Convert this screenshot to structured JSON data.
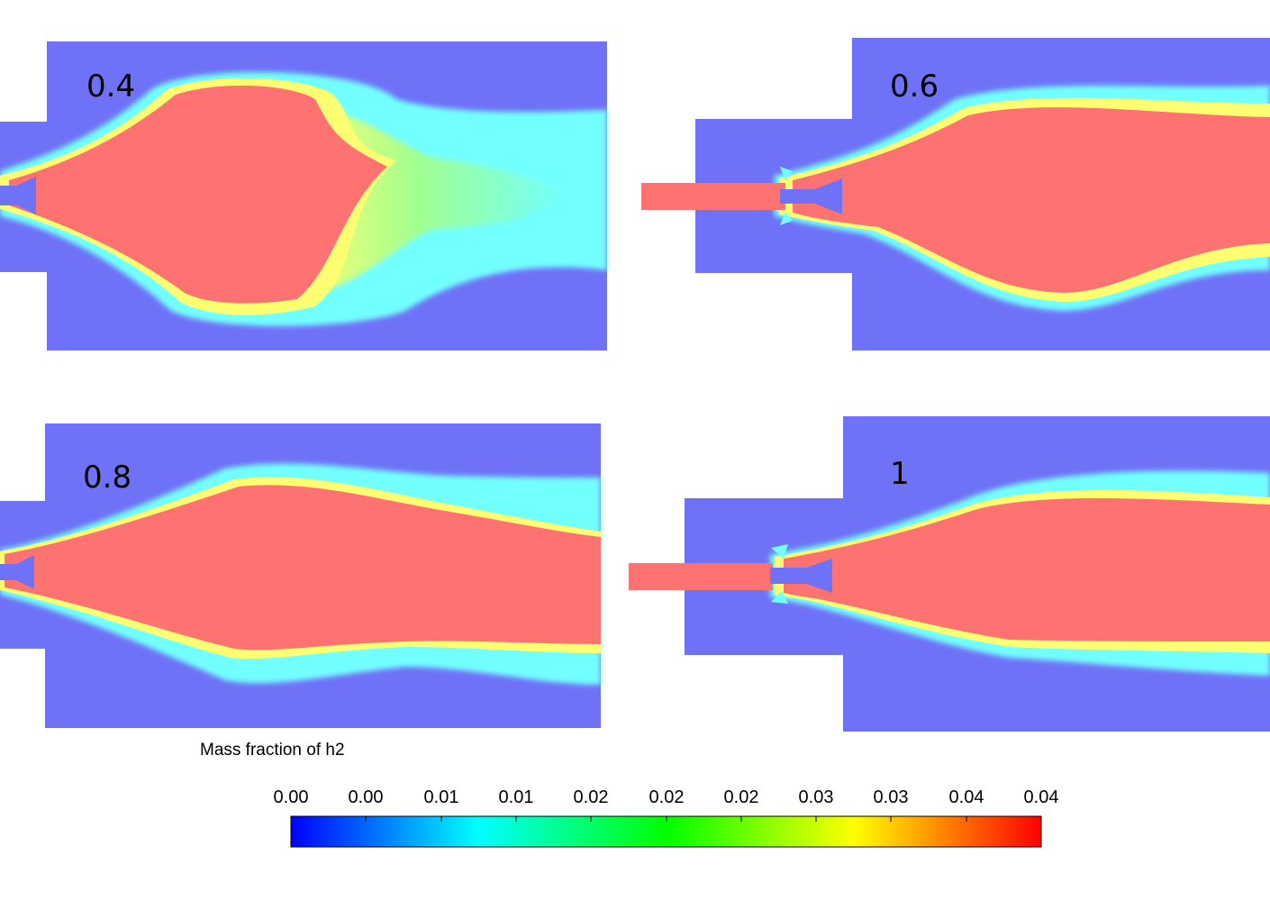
{
  "panels": [
    {
      "label": "0.4"
    },
    {
      "label": "0.6"
    },
    {
      "label": "0.8"
    },
    {
      "label": "1"
    }
  ],
  "colorbar": {
    "title": "Mass fraction of h2",
    "ticks": [
      "0.00",
      "0.00",
      "0.01",
      "0.01",
      "0.02",
      "0.02",
      "0.02",
      "0.03",
      "0.03",
      "0.04",
      "0.04"
    ],
    "colors": [
      "#0000ff",
      "#00ffff",
      "#00ff00",
      "#ffff00",
      "#ff0000"
    ]
  },
  "field_colors": {
    "background": "#6f72f7",
    "cyan": "#72ffff",
    "yellow": "#ffff72",
    "red": "#ff7272"
  }
}
